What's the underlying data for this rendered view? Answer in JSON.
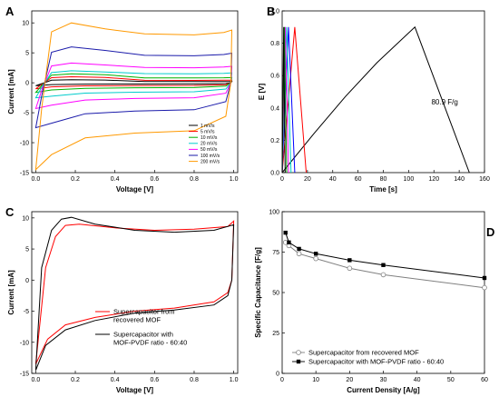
{
  "chart_data": [
    {
      "panel": "A",
      "type": "line",
      "xlabel": "Voltage [V]",
      "ylabel": "Current [mA]",
      "xlim": [
        -0.02,
        1.02
      ],
      "ylim": [
        -15,
        12
      ],
      "xticks": [
        "0.0",
        "0.2",
        "0.4",
        "0.6",
        "0.8",
        "1.0"
      ],
      "yticks": [
        "-15",
        "-10",
        "-5",
        "0",
        "5",
        "10"
      ],
      "legend_position": "bottom-right",
      "series": [
        {
          "name": "1 mV/s",
          "color": "#000000",
          "peak_up": 0.5,
          "plateau_up": 0.2,
          "plateau_down": -0.2,
          "start_low": -0.5
        },
        {
          "name": "5 mV/s",
          "color": "#ff0000",
          "peak_up": 1.0,
          "plateau_up": 0.4,
          "plateau_down": -0.45,
          "start_low": -1.0
        },
        {
          "name": "10 mV/s",
          "color": "#00b000",
          "peak_up": 1.5,
          "plateau_up": 0.8,
          "plateau_down": -0.8,
          "start_low": -1.6
        },
        {
          "name": "20 mV/s",
          "color": "#00cccc",
          "peak_up": 2.0,
          "plateau_up": 1.5,
          "plateau_down": -1.5,
          "start_low": -2.5
        },
        {
          "name": "50 mV/s",
          "color": "#ff00ff",
          "peak_up": 3.3,
          "plateau_up": 2.5,
          "plateau_down": -2.5,
          "start_low": -4.3
        },
        {
          "name": "100 mV/s",
          "color": "#1a1aaa",
          "peak_up": 6.0,
          "plateau_up": 4.5,
          "plateau_down": -4.5,
          "start_low": -7.5
        },
        {
          "name": "200 mV/s",
          "color": "#ff9900",
          "peak_up": 10.0,
          "plateau_up": 8.0,
          "plateau_down": -8.0,
          "start_low": -14.5
        }
      ]
    },
    {
      "panel": "B",
      "type": "line",
      "xlabel": "Time [s]",
      "ylabel": "E [V]",
      "xlim": [
        0,
        160
      ],
      "ylim": [
        0,
        1.0
      ],
      "xticks": [
        "0",
        "20",
        "40",
        "60",
        "80",
        "100",
        "120",
        "140",
        "160"
      ],
      "yticks": [
        "0.0",
        "0.2",
        "0.4",
        "0.6",
        "0.8",
        "1.0"
      ],
      "annotation": "80.9 F/g",
      "series": [
        {
          "color": "#000000",
          "points": [
            [
              0,
              0
            ],
            [
              25,
              0.24
            ],
            [
              50,
              0.47
            ],
            [
              75,
              0.68
            ],
            [
              105,
              0.9
            ],
            [
              148,
              0
            ]
          ]
        },
        {
          "color": "#ff0000",
          "points": [
            [
              0,
              0
            ],
            [
              10,
              0.9
            ],
            [
              19,
              0
            ]
          ]
        },
        {
          "color": "#0000ff",
          "points": [
            [
              0,
              0
            ],
            [
              5,
              0.9
            ],
            [
              10,
              0
            ]
          ]
        },
        {
          "color": "#00cccc",
          "points": [
            [
              0,
              0
            ],
            [
              3.5,
              0.9
            ],
            [
              7,
              0
            ]
          ]
        },
        {
          "color": "#ff00ff",
          "points": [
            [
              0,
              0
            ],
            [
              2.5,
              0.9
            ],
            [
              5,
              0
            ]
          ]
        },
        {
          "color": "#00a000",
          "points": [
            [
              0,
              0
            ],
            [
              1.8,
              0.9
            ],
            [
              3.6,
              0
            ]
          ]
        },
        {
          "color": "#000000",
          "points": [
            [
              0,
              0
            ],
            [
              1.2,
              0.9
            ],
            [
              2.4,
              0
            ]
          ]
        }
      ]
    },
    {
      "panel": "C",
      "type": "line",
      "xlabel": "Voltage [V]",
      "ylabel": "Current [mA]",
      "xlim": [
        -0.02,
        1.02
      ],
      "ylim": [
        -15,
        11
      ],
      "xticks": [
        "0.0",
        "0.2",
        "0.4",
        "0.6",
        "0.8",
        "1.0"
      ],
      "yticks": [
        "-15",
        "-10",
        "-5",
        "0",
        "5",
        "10"
      ],
      "legend_position": "bottom-right",
      "series": [
        {
          "name": "Supercapacitor from recovered MOF",
          "color": "#ff0000",
          "upper": [
            [
              0.0,
              -13.5
            ],
            [
              0.05,
              2.0
            ],
            [
              0.1,
              7.0
            ],
            [
              0.15,
              8.8
            ],
            [
              0.22,
              9.0
            ],
            [
              0.4,
              8.4
            ],
            [
              0.6,
              8.0
            ],
            [
              0.8,
              8.2
            ],
            [
              0.97,
              8.6
            ],
            [
              1.0,
              9.5
            ]
          ],
          "lower": [
            [
              1.0,
              9.5
            ],
            [
              0.99,
              0.0
            ],
            [
              0.97,
              -2.0
            ],
            [
              0.9,
              -3.5
            ],
            [
              0.7,
              -4.5
            ],
            [
              0.5,
              -5.0
            ],
            [
              0.3,
              -6.0
            ],
            [
              0.15,
              -7.2
            ],
            [
              0.06,
              -9.5
            ],
            [
              0.0,
              -13.5
            ]
          ]
        },
        {
          "name": "Supercapacitor with MOF-PVDF ratio - 60:40",
          "color": "#000000",
          "upper": [
            [
              0.0,
              -14.5
            ],
            [
              0.03,
              2.0
            ],
            [
              0.08,
              8.0
            ],
            [
              0.13,
              9.8
            ],
            [
              0.18,
              10.1
            ],
            [
              0.3,
              9.0
            ],
            [
              0.5,
              8.0
            ],
            [
              0.7,
              7.7
            ],
            [
              0.9,
              8.0
            ],
            [
              1.0,
              8.9
            ]
          ],
          "lower": [
            [
              1.0,
              8.9
            ],
            [
              0.99,
              0.0
            ],
            [
              0.97,
              -2.5
            ],
            [
              0.9,
              -4.0
            ],
            [
              0.7,
              -4.8
            ],
            [
              0.5,
              -5.3
            ],
            [
              0.3,
              -6.5
            ],
            [
              0.15,
              -8.0
            ],
            [
              0.05,
              -10.5
            ],
            [
              0.0,
              -14.5
            ]
          ]
        }
      ]
    },
    {
      "panel": "D",
      "type": "line",
      "xlabel": "Current Density [A/g]",
      "ylabel": "Specific Capacitance [F/g]",
      "xlim": [
        0,
        60
      ],
      "ylim": [
        0,
        100
      ],
      "xticks": [
        "0",
        "10",
        "20",
        "30",
        "40",
        "50",
        "60"
      ],
      "yticks": [
        "0",
        "25",
        "50",
        "75",
        "100"
      ],
      "legend_position": "bottom-left",
      "x": [
        1,
        2,
        5,
        10,
        20,
        30,
        60
      ],
      "series": [
        {
          "name": "Supercapacitor from recovered MOF",
          "color": "#808080",
          "marker": "open-circle",
          "values": [
            81,
            79,
            74,
            71,
            65,
            61,
            53
          ]
        },
        {
          "name": "Supercapacitor with MOF-PVDF ratio - 60:40",
          "color": "#000000",
          "marker": "filled-square",
          "values": [
            87,
            81,
            77,
            74,
            70,
            67,
            59
          ]
        }
      ]
    }
  ]
}
